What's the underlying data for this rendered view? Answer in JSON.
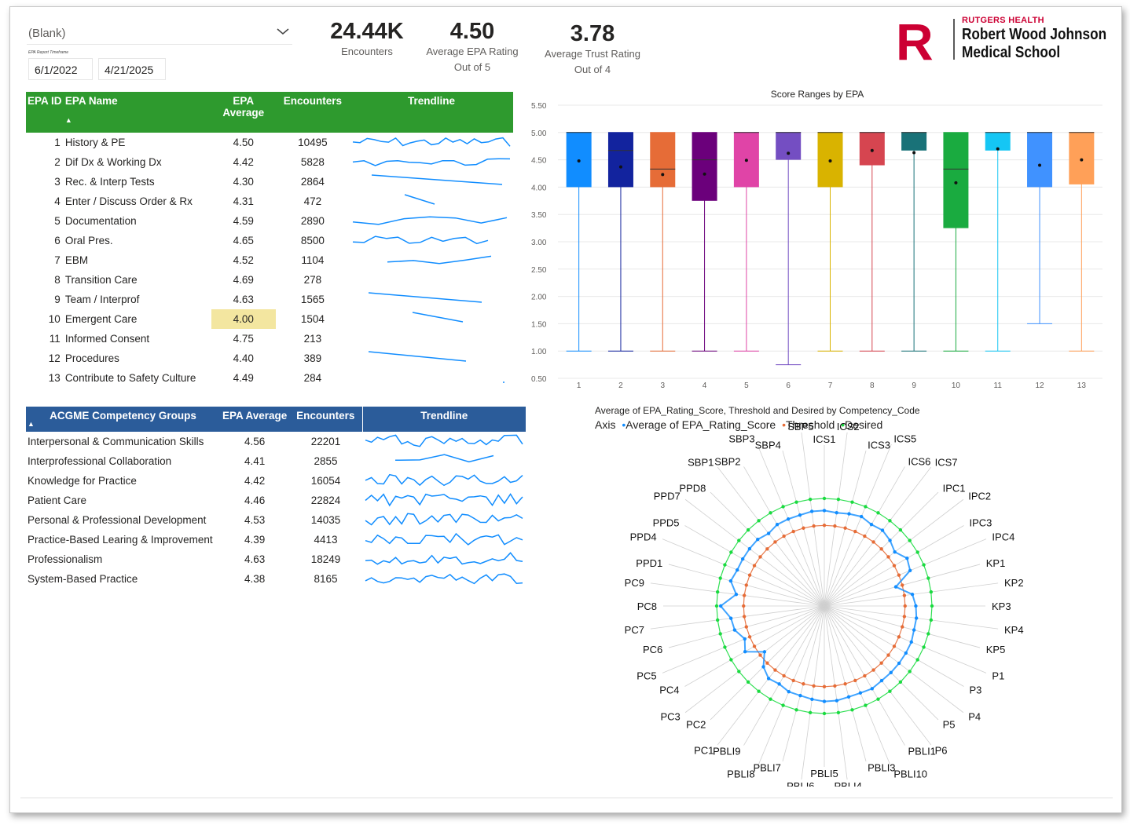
{
  "filters": {
    "slicer_value": "(Blank)",
    "timeframe_label": "EPA Report Timeframe",
    "start_date": "6/1/2022",
    "end_date": "4/21/2025"
  },
  "kpis": [
    {
      "value": "24.44K",
      "label": "Encounters",
      "sub": ""
    },
    {
      "value": "4.50",
      "label": "Average EPA Rating",
      "sub": "Out of 5"
    },
    {
      "value": "3.78",
      "label": "Average Trust Rating",
      "sub": "Out of 4"
    }
  ],
  "logo": {
    "line1": "RUTGERS HEALTH",
    "line2": "Robert Wood Johnson",
    "line3": "Medical School",
    "mark": "R"
  },
  "epa_table": {
    "headers": {
      "id": "EPA ID",
      "name": "EPA Name",
      "avg": "EPA Average",
      "enc": "Encounters",
      "trend": "Trendline"
    },
    "rows": [
      {
        "id": "1",
        "name": "History & PE",
        "avg": "4.50",
        "enc": "10495"
      },
      {
        "id": "2",
        "name": "Dif Dx & Working Dx",
        "avg": "4.42",
        "enc": "5828"
      },
      {
        "id": "3",
        "name": "Rec. & Interp Tests",
        "avg": "4.30",
        "enc": "2864"
      },
      {
        "id": "4",
        "name": "Enter / Discuss Order & Rx",
        "avg": "4.31",
        "enc": "472"
      },
      {
        "id": "5",
        "name": "Documentation",
        "avg": "4.59",
        "enc": "2890"
      },
      {
        "id": "6",
        "name": "Oral Pres.",
        "avg": "4.65",
        "enc": "8500"
      },
      {
        "id": "7",
        "name": "EBM",
        "avg": "4.52",
        "enc": "1104"
      },
      {
        "id": "8",
        "name": "Transition Care",
        "avg": "4.69",
        "enc": "278"
      },
      {
        "id": "9",
        "name": "Team / Interprof",
        "avg": "4.63",
        "enc": "1565"
      },
      {
        "id": "10",
        "name": "Emergent Care",
        "avg": "4.00",
        "enc": "1504"
      },
      {
        "id": "11",
        "name": "Informed Consent",
        "avg": "4.75",
        "enc": "213"
      },
      {
        "id": "12",
        "name": "Procedures",
        "avg": "4.40",
        "enc": "389"
      },
      {
        "id": "13",
        "name": "Contribute to Safety Culture",
        "avg": "4.49",
        "enc": "284"
      }
    ]
  },
  "acgme_table": {
    "headers": {
      "name": "ACGME Competency Groups",
      "avg": "EPA Average",
      "enc": "Encounters",
      "trend": "Trendline"
    },
    "rows": [
      {
        "name": "Interpersonal & Communication Skills",
        "avg": "4.56",
        "enc": "22201"
      },
      {
        "name": "Interprofessional Collaboration",
        "avg": "4.41",
        "enc": "2855"
      },
      {
        "name": "Knowledge for Practice",
        "avg": "4.42",
        "enc": "16054"
      },
      {
        "name": "Patient Care",
        "avg": "4.46",
        "enc": "22824"
      },
      {
        "name": "Personal & Professional Development",
        "avg": "4.53",
        "enc": "14035"
      },
      {
        "name": "Practice-Based Learing & Improvement",
        "avg": "4.39",
        "enc": "4413"
      },
      {
        "name": "Professionalism",
        "avg": "4.63",
        "enc": "18249"
      },
      {
        "name": "System-Based Practice",
        "avg": "4.38",
        "enc": "8165"
      }
    ]
  },
  "chart_data": [
    {
      "type": "box",
      "title": "Score Ranges by EPA",
      "categories": [
        "1",
        "2",
        "3",
        "4",
        "5",
        "6",
        "7",
        "8",
        "9",
        "10",
        "11",
        "12",
        "13"
      ],
      "ylim": [
        0.5,
        5.5
      ],
      "yticks": [
        "5.50",
        "5.00",
        "4.50",
        "4.00",
        "3.50",
        "3.00",
        "2.50",
        "2.00",
        "1.50",
        "1.00",
        "0.50"
      ],
      "boxes": [
        {
          "min": 1.0,
          "q1": 4.0,
          "median": 5.0,
          "q3": 5.0,
          "max": 5.0,
          "mean": 4.48,
          "color": "#118DFF"
        },
        {
          "min": 1.0,
          "q1": 4.0,
          "median": 4.67,
          "q3": 5.0,
          "max": 5.0,
          "mean": 4.37,
          "color": "#12239E"
        },
        {
          "min": 1.0,
          "q1": 4.0,
          "median": 4.33,
          "q3": 5.0,
          "max": 5.0,
          "mean": 4.23,
          "color": "#E66C37"
        },
        {
          "min": 1.0,
          "q1": 3.75,
          "median": 4.5,
          "q3": 5.0,
          "max": 5.0,
          "mean": 4.24,
          "color": "#6B007B"
        },
        {
          "min": 1.0,
          "q1": 4.0,
          "median": 5.0,
          "q3": 5.0,
          "max": 5.0,
          "mean": 4.49,
          "color": "#E044A7"
        },
        {
          "min": 0.75,
          "q1": 4.5,
          "median": 5.0,
          "q3": 5.0,
          "max": 5.0,
          "mean": 4.62,
          "color": "#744EC2"
        },
        {
          "min": 1.0,
          "q1": 4.0,
          "median": 5.0,
          "q3": 5.0,
          "max": 5.0,
          "mean": 4.48,
          "color": "#D9B300"
        },
        {
          "min": 1.0,
          "q1": 4.4,
          "median": 5.0,
          "q3": 5.0,
          "max": 5.0,
          "mean": 4.67,
          "color": "#D64550"
        },
        {
          "min": 1.0,
          "q1": 4.67,
          "median": 5.0,
          "q3": 5.0,
          "max": 5.0,
          "mean": 4.63,
          "color": "#197278"
        },
        {
          "min": 1.0,
          "q1": 3.25,
          "median": 4.33,
          "q3": 5.0,
          "max": 5.0,
          "mean": 4.08,
          "color": "#1AAB40"
        },
        {
          "min": 1.0,
          "q1": 4.67,
          "median": 5.0,
          "q3": 5.0,
          "max": 5.0,
          "mean": 4.7,
          "color": "#15C6F4"
        },
        {
          "min": 1.5,
          "q1": 4.0,
          "median": 5.0,
          "q3": 5.0,
          "max": 5.0,
          "mean": 4.4,
          "color": "#4092FF"
        },
        {
          "min": 1.0,
          "q1": 4.05,
          "median": 5.0,
          "q3": 5.0,
          "max": 5.0,
          "mean": 4.5,
          "color": "#FFA058"
        }
      ]
    },
    {
      "type": "radar",
      "title": "Average of EPA_Rating_Score, Threshold and Desired by Competency_Code",
      "legend_title": "Axis",
      "series_names": [
        "Average of EPA_Rating_Score",
        "Threshold",
        "Desired"
      ],
      "series_colors": [
        "#118DFF",
        "#E66C37",
        "#1ADB40"
      ],
      "categories": [
        "ICS1",
        "ICS2",
        "ICS3",
        "ICS5",
        "ICS6",
        "ICS7",
        "IPC1",
        "IPC2",
        "IPC3",
        "IPC4",
        "KP1",
        "KP2",
        "KP3",
        "KP4",
        "KP5",
        "P1",
        "P3",
        "P4",
        "P5",
        "P6",
        "PBLI1",
        "PBLI10",
        "PBLI3",
        "PBLI4",
        "PBLI5",
        "PBLI6",
        "PBLI7",
        "PBLI8",
        "PBLI9",
        "PC1",
        "PC2",
        "PC3",
        "PC4",
        "PC5",
        "PC6",
        "PC7",
        "PC8",
        "PC9",
        "PPD1",
        "PPD4",
        "PPD5",
        "PPD7",
        "PPD8",
        "SBP1",
        "SBP2",
        "SBP3",
        "SBP4",
        "SBP5"
      ],
      "series": [
        {
          "name": "Average of EPA_Rating_Score",
          "values": [
            4.55,
            4.5,
            4.55,
            4.6,
            4.5,
            4.55,
            4.45,
            4.3,
            4.55,
            4.45,
            3.75,
            4.3,
            4.4,
            4.45,
            4.45,
            4.5,
            4.5,
            4.5,
            4.5,
            4.5,
            4.55,
            4.5,
            4.5,
            4.55,
            4.55,
            4.5,
            4.45,
            4.45,
            4.35,
            4.4,
            4.2,
            3.8,
            4.4,
            4.2,
            4.45,
            4.5,
            4.85,
            4.3,
            4.6,
            4.5,
            4.5,
            4.5,
            4.5,
            4.4,
            4.5,
            4.5,
            4.5,
            4.55
          ]
        },
        {
          "name": "Threshold",
          "values": [
            4,
            4,
            4,
            4,
            4,
            4,
            4,
            4,
            4,
            4,
            4,
            4,
            4,
            4,
            4,
            4,
            4,
            4,
            4,
            4,
            4,
            4,
            4,
            4,
            4,
            4,
            4,
            4,
            4,
            4,
            4,
            4,
            4,
            4,
            4,
            4,
            4,
            4,
            4,
            4,
            4,
            4,
            4,
            4,
            4,
            4,
            4,
            4
          ]
        },
        {
          "name": "Desired",
          "values": [
            5,
            5,
            5,
            5,
            5,
            5,
            5,
            5,
            5,
            5,
            5,
            5,
            5,
            5,
            5,
            5,
            5,
            5,
            5,
            5,
            5,
            5,
            5,
            5,
            5,
            5,
            5,
            5,
            5,
            5,
            5,
            5,
            5,
            5,
            5,
            5,
            5,
            5,
            5,
            5,
            5,
            5,
            5,
            5,
            5,
            5,
            5,
            5
          ]
        }
      ]
    }
  ]
}
